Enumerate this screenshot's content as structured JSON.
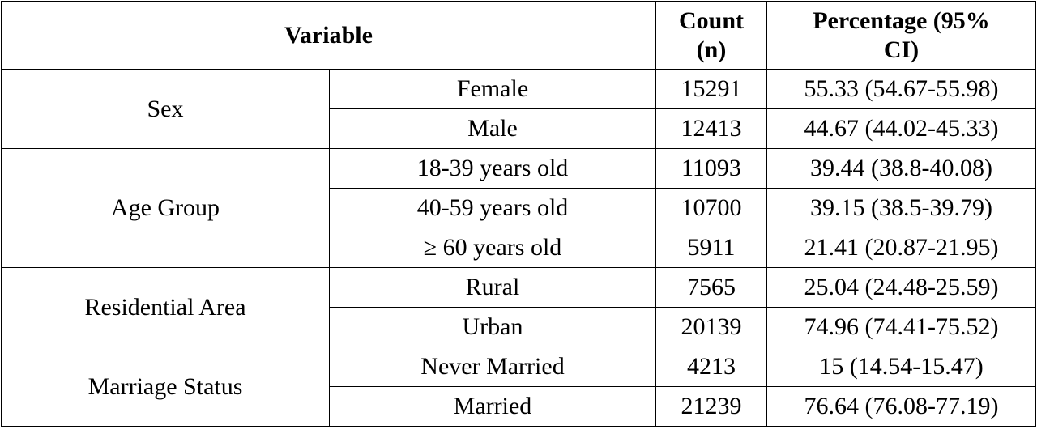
{
  "table": {
    "headers": {
      "variable": "Variable",
      "count_line1": "Count",
      "count_line2": "(n)",
      "percentage_line1": "Percentage (95%",
      "percentage_line2": "CI)"
    },
    "groups": [
      {
        "variable": "Sex",
        "rows": [
          {
            "category": "Female",
            "count": "15291",
            "percentage": "55.33 (54.67-55.98)"
          },
          {
            "category": "Male",
            "count": "12413",
            "percentage": "44.67 (44.02-45.33)"
          }
        ]
      },
      {
        "variable": "Age Group",
        "rows": [
          {
            "category": "18-39 years old",
            "count": "11093",
            "percentage": "39.44 (38.8-40.08)"
          },
          {
            "category": "40-59 years old",
            "count": "10700",
            "percentage": "39.15 (38.5-39.79)"
          },
          {
            "category": "≥ 60 years old",
            "count": "5911",
            "percentage": "21.41 (20.87-21.95)"
          }
        ]
      },
      {
        "variable": "Residential Area",
        "rows": [
          {
            "category": "Rural",
            "count": "7565",
            "percentage": "25.04 (24.48-25.59)"
          },
          {
            "category": "Urban",
            "count": "20139",
            "percentage": "74.96 (74.41-75.52)"
          }
        ]
      },
      {
        "variable": "Marriage Status",
        "rows": [
          {
            "category": "Never Married",
            "count": "4213",
            "percentage": "15 (14.54-15.47)"
          },
          {
            "category": "Married",
            "count": "21239",
            "percentage": "76.64 (76.08-77.19)"
          }
        ]
      }
    ]
  }
}
